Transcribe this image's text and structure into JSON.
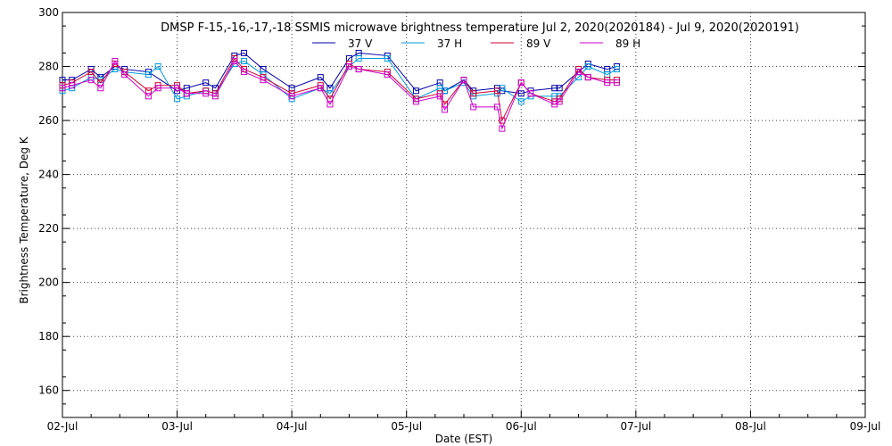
{
  "chart_data": {
    "type": "line",
    "title": "DMSP F-15,-16,-17,-18 SSMIS microwave brightness temperature Jul  2, 2020(2020184) - Jul  9, 2020(2020191)",
    "xlabel": "Date (EST)",
    "ylabel": "Brightness Temperature, Deg K",
    "xlim": [
      "2020-07-02T00:00",
      "2020-07-09T00:00"
    ],
    "ylim": [
      150,
      300
    ],
    "x_tick_labels": [
      "02-Jul",
      "03-Jul",
      "04-Jul",
      "05-Jul",
      "06-Jul",
      "07-Jul",
      "08-Jul",
      "09-Jul"
    ],
    "y_ticks": [
      160,
      180,
      200,
      220,
      240,
      260,
      280,
      300
    ],
    "grid": true,
    "legend_position": "top-center",
    "series": [
      {
        "name": "37 V",
        "color": "#0000aa",
        "points": [
          {
            "x": "2020-07-02T00:00",
            "y": 275
          },
          {
            "x": "2020-07-02T02:00",
            "y": 275
          },
          {
            "x": "2020-07-02T06:00",
            "y": 279
          },
          {
            "x": "2020-07-02T08:00",
            "y": 276
          },
          {
            "x": "2020-07-02T11:00",
            "y": 280
          },
          {
            "x": "2020-07-02T13:00",
            "y": 279
          },
          {
            "x": "2020-07-02T18:00",
            "y": 278
          },
          {
            "x": "2020-07-03T00:00",
            "y": 271
          },
          {
            "x": "2020-07-03T02:00",
            "y": 272
          },
          {
            "x": "2020-07-03T06:00",
            "y": 274
          },
          {
            "x": "2020-07-03T08:00",
            "y": 272
          },
          {
            "x": "2020-07-03T12:00",
            "y": 284
          },
          {
            "x": "2020-07-03T14:00",
            "y": 285
          },
          {
            "x": "2020-07-03T18:00",
            "y": 279
          },
          {
            "x": "2020-07-04T00:00",
            "y": 272
          },
          {
            "x": "2020-07-04T06:00",
            "y": 276
          },
          {
            "x": "2020-07-04T08:00",
            "y": 272
          },
          {
            "x": "2020-07-04T12:00",
            "y": 283
          },
          {
            "x": "2020-07-04T14:00",
            "y": 285
          },
          {
            "x": "2020-07-04T20:00",
            "y": 284
          },
          {
            "x": "2020-07-05T02:00",
            "y": 271
          },
          {
            "x": "2020-07-05T07:00",
            "y": 274
          },
          {
            "x": "2020-07-05T08:00",
            "y": 271
          },
          {
            "x": "2020-07-05T12:00",
            "y": 275
          },
          {
            "x": "2020-07-05T14:00",
            "y": 271
          },
          {
            "x": "2020-07-05T19:00",
            "y": 272
          },
          {
            "x": "2020-07-05T20:00",
            "y": 271
          },
          {
            "x": "2020-07-06T00:00",
            "y": 270
          },
          {
            "x": "2020-07-06T02:00",
            "y": 271
          },
          {
            "x": "2020-07-06T07:00",
            "y": 272
          },
          {
            "x": "2020-07-06T08:00",
            "y": 272
          },
          {
            "x": "2020-07-06T12:00",
            "y": 278
          },
          {
            "x": "2020-07-06T14:00",
            "y": 281
          },
          {
            "x": "2020-07-06T18:00",
            "y": 279
          },
          {
            "x": "2020-07-06T20:00",
            "y": 280
          }
        ]
      },
      {
        "name": "37 H",
        "color": "#0099dd",
        "points": [
          {
            "x": "2020-07-02T00:00",
            "y": 271
          },
          {
            "x": "2020-07-02T02:00",
            "y": 272
          },
          {
            "x": "2020-07-02T06:00",
            "y": 276
          },
          {
            "x": "2020-07-02T08:00",
            "y": 275
          },
          {
            "x": "2020-07-02T11:00",
            "y": 279
          },
          {
            "x": "2020-07-02T13:00",
            "y": 278
          },
          {
            "x": "2020-07-02T18:00",
            "y": 277
          },
          {
            "x": "2020-07-02T20:00",
            "y": 280
          },
          {
            "x": "2020-07-03T00:00",
            "y": 268
          },
          {
            "x": "2020-07-03T02:00",
            "y": 269
          },
          {
            "x": "2020-07-03T06:00",
            "y": 271
          },
          {
            "x": "2020-07-03T08:00",
            "y": 270
          },
          {
            "x": "2020-07-03T12:00",
            "y": 281
          },
          {
            "x": "2020-07-03T14:00",
            "y": 282
          },
          {
            "x": "2020-07-03T18:00",
            "y": 277
          },
          {
            "x": "2020-07-04T00:00",
            "y": 268
          },
          {
            "x": "2020-07-04T06:00",
            "y": 272
          },
          {
            "x": "2020-07-04T08:00",
            "y": 270
          },
          {
            "x": "2020-07-04T12:00",
            "y": 280
          },
          {
            "x": "2020-07-04T14:00",
            "y": 283
          },
          {
            "x": "2020-07-04T20:00",
            "y": 283
          },
          {
            "x": "2020-07-05T02:00",
            "y": 268
          },
          {
            "x": "2020-07-05T07:00",
            "y": 272
          },
          {
            "x": "2020-07-05T08:00",
            "y": 271
          },
          {
            "x": "2020-07-05T12:00",
            "y": 274
          },
          {
            "x": "2020-07-05T14:00",
            "y": 269
          },
          {
            "x": "2020-07-05T19:00",
            "y": 270
          },
          {
            "x": "2020-07-05T20:00",
            "y": 272
          },
          {
            "x": "2020-07-06T00:00",
            "y": 267
          },
          {
            "x": "2020-07-06T02:00",
            "y": 269
          },
          {
            "x": "2020-07-06T07:00",
            "y": 269
          },
          {
            "x": "2020-07-06T08:00",
            "y": 269
          },
          {
            "x": "2020-07-06T12:00",
            "y": 276
          },
          {
            "x": "2020-07-06T14:00",
            "y": 280
          },
          {
            "x": "2020-07-06T18:00",
            "y": 277
          },
          {
            "x": "2020-07-06T20:00",
            "y": 279
          }
        ]
      },
      {
        "name": "89 V",
        "color": "#cc0033",
        "points": [
          {
            "x": "2020-07-02T00:00",
            "y": 273
          },
          {
            "x": "2020-07-02T02:00",
            "y": 274
          },
          {
            "x": "2020-07-02T06:00",
            "y": 278
          },
          {
            "x": "2020-07-02T08:00",
            "y": 274
          },
          {
            "x": "2020-07-02T11:00",
            "y": 281
          },
          {
            "x": "2020-07-02T13:00",
            "y": 278
          },
          {
            "x": "2020-07-02T18:00",
            "y": 271
          },
          {
            "x": "2020-07-02T20:00",
            "y": 273
          },
          {
            "x": "2020-07-03T00:00",
            "y": 273
          },
          {
            "x": "2020-07-03T02:00",
            "y": 270
          },
          {
            "x": "2020-07-03T06:00",
            "y": 271
          },
          {
            "x": "2020-07-03T08:00",
            "y": 270
          },
          {
            "x": "2020-07-03T12:00",
            "y": 283
          },
          {
            "x": "2020-07-03T14:00",
            "y": 279
          },
          {
            "x": "2020-07-03T18:00",
            "y": 276
          },
          {
            "x": "2020-07-04T00:00",
            "y": 270
          },
          {
            "x": "2020-07-04T06:00",
            "y": 273
          },
          {
            "x": "2020-07-04T08:00",
            "y": 268
          },
          {
            "x": "2020-07-04T12:00",
            "y": 281
          },
          {
            "x": "2020-07-04T14:00",
            "y": 279
          },
          {
            "x": "2020-07-04T20:00",
            "y": 278
          },
          {
            "x": "2020-07-05T02:00",
            "y": 268
          },
          {
            "x": "2020-07-05T07:00",
            "y": 270
          },
          {
            "x": "2020-07-05T08:00",
            "y": 266
          },
          {
            "x": "2020-07-05T12:00",
            "y": 275
          },
          {
            "x": "2020-07-05T14:00",
            "y": 270
          },
          {
            "x": "2020-07-05T19:00",
            "y": 271
          },
          {
            "x": "2020-07-05T20:00",
            "y": 260
          },
          {
            "x": "2020-07-06T00:00",
            "y": 274
          },
          {
            "x": "2020-07-06T02:00",
            "y": 270
          },
          {
            "x": "2020-07-06T07:00",
            "y": 267
          },
          {
            "x": "2020-07-06T08:00",
            "y": 268
          },
          {
            "x": "2020-07-06T12:00",
            "y": 279
          },
          {
            "x": "2020-07-06T14:00",
            "y": 276
          },
          {
            "x": "2020-07-06T18:00",
            "y": 275
          },
          {
            "x": "2020-07-06T20:00",
            "y": 275
          }
        ]
      },
      {
        "name": "89 H",
        "color": "#cc00cc",
        "points": [
          {
            "x": "2020-07-02T00:00",
            "y": 272
          },
          {
            "x": "2020-07-02T02:00",
            "y": 273
          },
          {
            "x": "2020-07-02T06:00",
            "y": 275
          },
          {
            "x": "2020-07-02T08:00",
            "y": 272
          },
          {
            "x": "2020-07-02T11:00",
            "y": 282
          },
          {
            "x": "2020-07-02T13:00",
            "y": 277
          },
          {
            "x": "2020-07-02T18:00",
            "y": 269
          },
          {
            "x": "2020-07-02T20:00",
            "y": 272
          },
          {
            "x": "2020-07-03T00:00",
            "y": 272
          },
          {
            "x": "2020-07-03T02:00",
            "y": 270
          },
          {
            "x": "2020-07-03T06:00",
            "y": 270
          },
          {
            "x": "2020-07-03T08:00",
            "y": 269
          },
          {
            "x": "2020-07-03T12:00",
            "y": 282
          },
          {
            "x": "2020-07-03T14:00",
            "y": 278
          },
          {
            "x": "2020-07-03T18:00",
            "y": 275
          },
          {
            "x": "2020-07-04T00:00",
            "y": 269
          },
          {
            "x": "2020-07-04T06:00",
            "y": 272
          },
          {
            "x": "2020-07-04T08:00",
            "y": 266
          },
          {
            "x": "2020-07-04T12:00",
            "y": 280
          },
          {
            "x": "2020-07-04T14:00",
            "y": 279
          },
          {
            "x": "2020-07-04T20:00",
            "y": 277
          },
          {
            "x": "2020-07-05T02:00",
            "y": 267
          },
          {
            "x": "2020-07-05T07:00",
            "y": 269
          },
          {
            "x": "2020-07-05T08:00",
            "y": 264
          },
          {
            "x": "2020-07-05T12:00",
            "y": 275
          },
          {
            "x": "2020-07-05T14:00",
            "y": 265
          },
          {
            "x": "2020-07-05T19:00",
            "y": 265
          },
          {
            "x": "2020-07-05T20:00",
            "y": 257
          },
          {
            "x": "2020-07-06T00:00",
            "y": 274
          },
          {
            "x": "2020-07-06T02:00",
            "y": 270
          },
          {
            "x": "2020-07-06T07:00",
            "y": 266
          },
          {
            "x": "2020-07-06T08:00",
            "y": 267
          },
          {
            "x": "2020-07-06T12:00",
            "y": 278
          },
          {
            "x": "2020-07-06T14:00",
            "y": 276
          },
          {
            "x": "2020-07-06T18:00",
            "y": 274
          },
          {
            "x": "2020-07-06T20:00",
            "y": 274
          }
        ]
      }
    ]
  }
}
